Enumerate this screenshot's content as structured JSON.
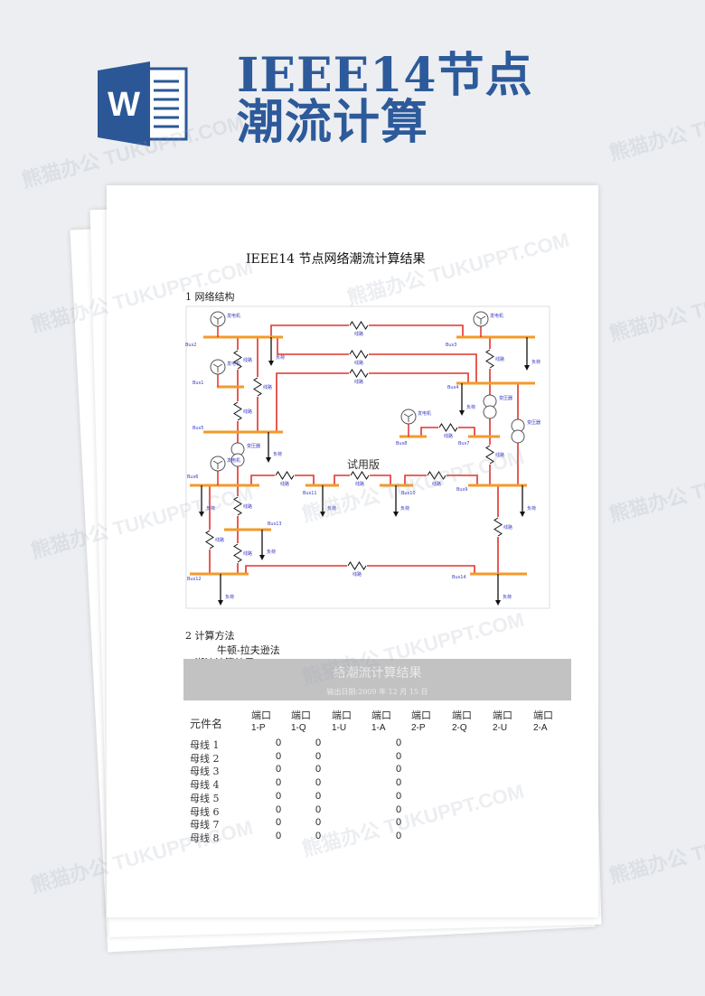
{
  "header": {
    "title_line1": "IEEE14节点",
    "title_line2": "潮流计算",
    "icon": "word-icon",
    "icon_letter": "W",
    "accent": "#2b5797"
  },
  "watermark": "熊猫办公 TUKUPPT.COM",
  "doc": {
    "title": "IEEE14 节点网络潮流计算结果",
    "section1": "1 网络结构",
    "section2": "2 计算方法",
    "method": "牛顿-拉夫逊法",
    "section3": "3 潮流计算结果",
    "trial_mark": "试用版"
  },
  "diagram": {
    "buses": [
      "Bus2",
      "Bus1",
      "Bus5",
      "Bus3",
      "Bus4",
      "Bus8",
      "Bus7",
      "Bus6",
      "Bus11",
      "Bus10",
      "Bus9",
      "Bus13",
      "Bus12",
      "Bus14"
    ],
    "generator": "发电机",
    "line": "线路",
    "load": "负荷",
    "transformer": "变压器"
  },
  "results": {
    "band_title": "络潮流计算结果",
    "band_date": "输出日期:2009 年  12 月  15 日",
    "col0": "元件名",
    "port": "端口",
    "columns": [
      "1-P",
      "1-Q",
      "1-U",
      "1-A",
      "2-P",
      "2-Q",
      "2-U",
      "2-A"
    ],
    "rows": [
      {
        "name": "母线 1",
        "p": "0",
        "q": "0",
        "a": "0"
      },
      {
        "name": "母线 2",
        "p": "0",
        "q": "0",
        "a": "0"
      },
      {
        "name": "母线 3",
        "p": "0",
        "q": "0",
        "a": "0"
      },
      {
        "name": "母线 4",
        "p": "0",
        "q": "0",
        "a": "0"
      },
      {
        "name": "母线 5",
        "p": "0",
        "q": "0",
        "a": "0"
      },
      {
        "name": "母线 6",
        "p": "0",
        "q": "0",
        "a": "0"
      },
      {
        "name": "母线 7",
        "p": "0",
        "q": "0",
        "a": "0"
      },
      {
        "name": "母线 8",
        "p": "0",
        "q": "0",
        "a": "0"
      }
    ]
  }
}
